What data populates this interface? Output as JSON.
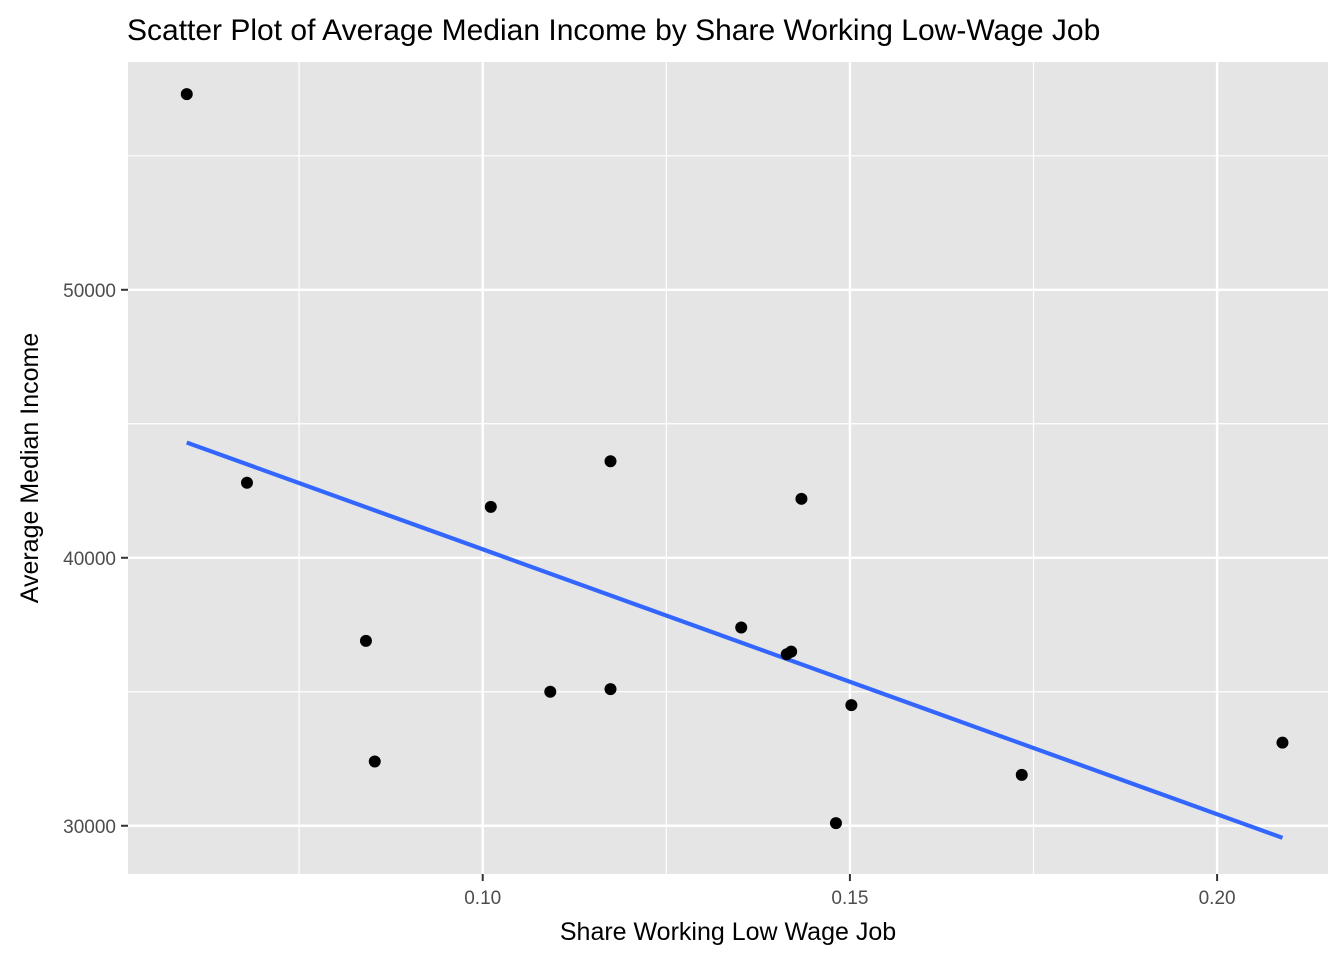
{
  "chart_data": {
    "type": "scatter",
    "title": "Scatter Plot of Average Median Income by Share Working Low-Wage Job",
    "xlabel": "Share Working Low Wage Job",
    "ylabel": "Average Median Income",
    "xlim": [
      0.0517,
      0.2151
    ],
    "ylim": [
      28200,
      58500
    ],
    "x_ticks": [
      {
        "value": 0.1,
        "label": "0.10"
      },
      {
        "value": 0.15,
        "label": "0.15"
      },
      {
        "value": 0.2,
        "label": "0.20"
      }
    ],
    "x_minor": [
      0.075,
      0.125,
      0.175
    ],
    "y_ticks": [
      {
        "value": 30000,
        "label": "30000"
      },
      {
        "value": 40000,
        "label": "40000"
      },
      {
        "value": 50000,
        "label": "50000"
      }
    ],
    "y_minor": [
      35000,
      45000,
      55000
    ],
    "grid": true,
    "points": [
      {
        "x": 0.0597,
        "y": 57300
      },
      {
        "x": 0.0679,
        "y": 42800
      },
      {
        "x": 0.0841,
        "y": 36900
      },
      {
        "x": 0.0853,
        "y": 32400
      },
      {
        "x": 0.1011,
        "y": 41900
      },
      {
        "x": 0.1092,
        "y": 35000
      },
      {
        "x": 0.1174,
        "y": 43600
      },
      {
        "x": 0.1174,
        "y": 35100
      },
      {
        "x": 0.1352,
        "y": 37400
      },
      {
        "x": 0.1414,
        "y": 36400
      },
      {
        "x": 0.142,
        "y": 36500
      },
      {
        "x": 0.1434,
        "y": 42200
      },
      {
        "x": 0.1481,
        "y": 30100
      },
      {
        "x": 0.1502,
        "y": 34500
      },
      {
        "x": 0.1734,
        "y": 31900
      },
      {
        "x": 0.2089,
        "y": 33100
      }
    ],
    "point_color": "#000000",
    "trend_line": {
      "method": "linear",
      "color": "#3366FF",
      "start": {
        "x": 0.0597,
        "y": 44300
      },
      "end": {
        "x": 0.2089,
        "y": 29550
      }
    },
    "panel_background": "#E5E5E5",
    "grid_color": "#FFFFFF"
  }
}
